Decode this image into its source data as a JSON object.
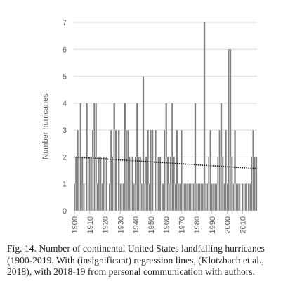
{
  "chart_data": {
    "type": "bar",
    "ylabel": "Number hurricanes",
    "xlabel": "",
    "ylim": [
      0,
      7
    ],
    "xlim": [
      1900,
      2019
    ],
    "yticks": [
      0,
      1,
      2,
      3,
      4,
      5,
      6,
      7
    ],
    "xticks": [
      1900,
      1910,
      1920,
      1930,
      1940,
      1950,
      1960,
      1970,
      1980,
      1990,
      2000,
      2010
    ],
    "grid": "horizontal",
    "bar_color": "#808080",
    "trend_line": {
      "style": "dotted",
      "color": "#1a1a1a",
      "y_start": 2.0,
      "y_end": 1.57
    },
    "years": [
      1900,
      1901,
      1902,
      1903,
      1904,
      1905,
      1906,
      1907,
      1908,
      1909,
      1910,
      1911,
      1912,
      1913,
      1914,
      1915,
      1916,
      1917,
      1918,
      1919,
      1920,
      1921,
      1922,
      1923,
      1924,
      1925,
      1926,
      1927,
      1928,
      1929,
      1930,
      1931,
      1932,
      1933,
      1934,
      1935,
      1936,
      1937,
      1938,
      1939,
      1940,
      1941,
      1942,
      1943,
      1944,
      1945,
      1946,
      1947,
      1948,
      1949,
      1950,
      1951,
      1952,
      1953,
      1954,
      1955,
      1956,
      1957,
      1958,
      1959,
      1960,
      1961,
      1962,
      1963,
      1964,
      1965,
      1966,
      1967,
      1968,
      1969,
      1970,
      1971,
      1972,
      1973,
      1974,
      1975,
      1976,
      1977,
      1978,
      1979,
      1980,
      1981,
      1982,
      1983,
      1984,
      1985,
      1986,
      1987,
      1988,
      1989,
      1990,
      1991,
      1992,
      1993,
      1994,
      1995,
      1996,
      1997,
      1998,
      1999,
      2000,
      2001,
      2002,
      2003,
      2004,
      2005,
      2006,
      2007,
      2008,
      2009,
      2010,
      2011,
      2012,
      2013,
      2014,
      2015,
      2016,
      2017,
      2018,
      2019
    ],
    "values": [
      1,
      2,
      3,
      0,
      4,
      2,
      1,
      0,
      4,
      2,
      2,
      2,
      3,
      4,
      4,
      1,
      2,
      2,
      1,
      2,
      1,
      2,
      0,
      1,
      3,
      2,
      4,
      3,
      0,
      3,
      1,
      0,
      1,
      4,
      3,
      3,
      2,
      2,
      2,
      1,
      2,
      4,
      2,
      2,
      1,
      5,
      1,
      2,
      3,
      1,
      3,
      3,
      0,
      3,
      2,
      2,
      2,
      0,
      1,
      3,
      4,
      2,
      1,
      2,
      4,
      2,
      1,
      3,
      1,
      1,
      3,
      1,
      1,
      1,
      1,
      1,
      1,
      1,
      1,
      4,
      1,
      1,
      1,
      1,
      1,
      7,
      1,
      1,
      2,
      3,
      1,
      1,
      1,
      1,
      2,
      3,
      4,
      2,
      1,
      3,
      1,
      6,
      6,
      2,
      1,
      3,
      1,
      1,
      1,
      0,
      1,
      1,
      1,
      0,
      1,
      1,
      2,
      3,
      2,
      2
    ]
  },
  "caption": "Fig. 14. Number of continental United States landfalling hurricanes (1900-2019. With (insignificant) regression lines, (Klotzbach et al., 2018), with 2018-19 from personal communication with authors."
}
